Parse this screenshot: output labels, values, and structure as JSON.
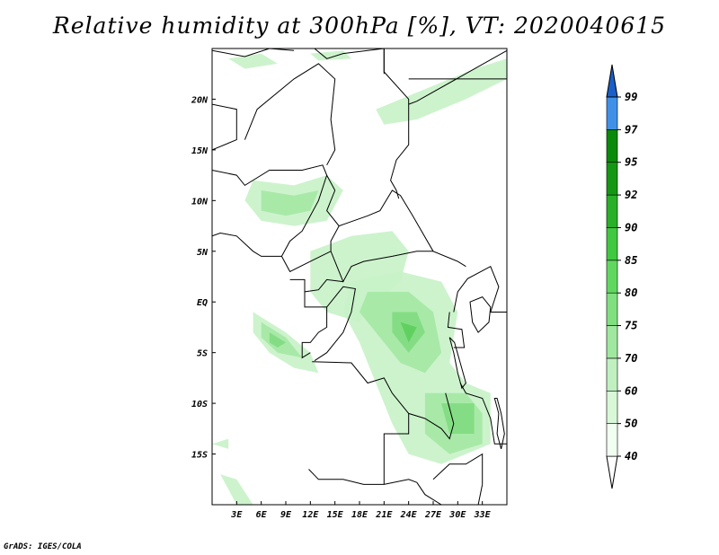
{
  "title": "Relative humidity at 300hPa [%], VT: 2020040615",
  "credit": "GrADS: IGES/COLA",
  "map": {
    "lon_range": [
      0,
      36
    ],
    "lat_range": [
      -20,
      25
    ],
    "lon_ticks": [
      {
        "value": 3,
        "label": "3E"
      },
      {
        "value": 6,
        "label": "6E"
      },
      {
        "value": 9,
        "label": "9E"
      },
      {
        "value": 12,
        "label": "12E"
      },
      {
        "value": 15,
        "label": "15E"
      },
      {
        "value": 18,
        "label": "18E"
      },
      {
        "value": 21,
        "label": "21E"
      },
      {
        "value": 24,
        "label": "24E"
      },
      {
        "value": 27,
        "label": "27E"
      },
      {
        "value": 30,
        "label": "30E"
      },
      {
        "value": 33,
        "label": "33E"
      }
    ],
    "lat_ticks": [
      {
        "value": 20,
        "label": "20N"
      },
      {
        "value": 15,
        "label": "15N"
      },
      {
        "value": 10,
        "label": "10N"
      },
      {
        "value": 5,
        "label": "5N"
      },
      {
        "value": 0,
        "label": "EQ"
      },
      {
        "value": -5,
        "label": "5S"
      },
      {
        "value": -10,
        "label": "10S"
      },
      {
        "value": -15,
        "label": "15S"
      }
    ]
  },
  "colorbar": {
    "levels": [
      {
        "value": "40",
        "color": "#f0fff0"
      },
      {
        "value": "50",
        "color": "#d8f8d8"
      },
      {
        "value": "60",
        "color": "#c0f0c0"
      },
      {
        "value": "70",
        "color": "#a0e8a0"
      },
      {
        "value": "75",
        "color": "#80e080"
      },
      {
        "value": "80",
        "color": "#60d860"
      },
      {
        "value": "85",
        "color": "#40c840"
      },
      {
        "value": "90",
        "color": "#28b028"
      },
      {
        "value": "92",
        "color": "#149814"
      },
      {
        "value": "95",
        "color": "#0a8a0a"
      },
      {
        "value": "97",
        "color": "#4090e8"
      },
      {
        "value": "99",
        "color": "#2070d8"
      }
    ],
    "top_color": "#1a5fc8",
    "bottom_color": "#ffffff"
  },
  "humidity_areas": [
    {
      "level": 1,
      "points": [
        [
          5,
          12
        ],
        [
          10,
          11.5
        ],
        [
          14,
          12.5
        ],
        [
          16,
          11
        ],
        [
          14,
          8
        ],
        [
          10,
          7.5
        ],
        [
          6,
          8
        ],
        [
          4,
          10
        ]
      ]
    },
    {
      "level": 1,
      "points": [
        [
          12,
          5
        ],
        [
          17,
          6.5
        ],
        [
          22,
          7
        ],
        [
          24,
          5
        ],
        [
          23,
          2
        ],
        [
          20,
          0
        ],
        [
          18,
          -2
        ],
        [
          14,
          -1
        ],
        [
          12,
          1
        ]
      ]
    },
    {
      "level": 1,
      "points": [
        [
          17,
          2
        ],
        [
          23,
          3
        ],
        [
          28,
          2
        ],
        [
          30,
          -1
        ],
        [
          29,
          -6
        ],
        [
          31,
          -8
        ],
        [
          34,
          -9
        ],
        [
          34,
          -14
        ],
        [
          31,
          -15
        ],
        [
          28,
          -16
        ],
        [
          24,
          -15
        ],
        [
          22,
          -12
        ],
        [
          20,
          -8
        ],
        [
          18,
          -4
        ],
        [
          16,
          -1
        ]
      ]
    },
    {
      "level": 1,
      "points": [
        [
          5,
          -1
        ],
        [
          9,
          -3
        ],
        [
          12,
          -5
        ],
        [
          13,
          -7
        ],
        [
          10,
          -6.5
        ],
        [
          7,
          -5
        ],
        [
          5,
          -3
        ]
      ]
    },
    {
      "level": 1,
      "points": [
        [
          20,
          19
        ],
        [
          26,
          21
        ],
        [
          32,
          23
        ],
        [
          36,
          24
        ],
        [
          36,
          22
        ],
        [
          31,
          20
        ],
        [
          25,
          18
        ],
        [
          21,
          17.5
        ]
      ]
    },
    {
      "level": 1,
      "points": [
        [
          2,
          24
        ],
        [
          6,
          24.5
        ],
        [
          8,
          23.5
        ],
        [
          4,
          23
        ]
      ]
    },
    {
      "level": 1,
      "points": [
        [
          12,
          24.5
        ],
        [
          16,
          24.8
        ],
        [
          17,
          24
        ],
        [
          13,
          23.8
        ]
      ]
    },
    {
      "level": 1,
      "points": [
        [
          1,
          -17
        ],
        [
          3,
          -20
        ],
        [
          5,
          -20
        ],
        [
          3,
          -17.5
        ]
      ]
    },
    {
      "level": 1,
      "points": [
        [
          0,
          -14
        ],
        [
          2,
          -13.5
        ],
        [
          2,
          -14.5
        ]
      ]
    },
    {
      "level": 2,
      "points": [
        [
          6,
          11
        ],
        [
          10,
          10.5
        ],
        [
          13,
          11
        ],
        [
          12,
          9
        ],
        [
          9,
          8.5
        ],
        [
          6,
          9
        ]
      ]
    },
    {
      "level": 2,
      "points": [
        [
          19,
          1
        ],
        [
          24,
          1
        ],
        [
          27,
          -1
        ],
        [
          28,
          -5
        ],
        [
          26,
          -7
        ],
        [
          23,
          -6
        ],
        [
          20,
          -3
        ],
        [
          18,
          -1
        ]
      ]
    },
    {
      "level": 2,
      "points": [
        [
          26,
          -9
        ],
        [
          31,
          -9
        ],
        [
          33,
          -11
        ],
        [
          33,
          -14
        ],
        [
          29,
          -15
        ],
        [
          26,
          -13
        ]
      ]
    },
    {
      "level": 2,
      "points": [
        [
          6,
          -2
        ],
        [
          9,
          -3.5
        ],
        [
          11,
          -5.5
        ],
        [
          8,
          -5
        ],
        [
          6,
          -3.5
        ]
      ]
    },
    {
      "level": 3,
      "points": [
        [
          22,
          -1
        ],
        [
          25,
          -1
        ],
        [
          26,
          -3
        ],
        [
          24,
          -5
        ],
        [
          22,
          -3
        ]
      ]
    },
    {
      "level": 3,
      "points": [
        [
          28,
          -10
        ],
        [
          32,
          -10
        ],
        [
          32,
          -13
        ],
        [
          29,
          -13
        ]
      ]
    },
    {
      "level": 3,
      "points": [
        [
          7,
          -3
        ],
        [
          9,
          -4
        ],
        [
          8,
          -4.5
        ],
        [
          7,
          -4
        ]
      ]
    },
    {
      "level": 4,
      "points": [
        [
          23,
          -2
        ],
        [
          25,
          -2.5
        ],
        [
          24,
          -4
        ]
      ]
    }
  ],
  "borders": [
    [
      [
        0,
        24.8
      ],
      [
        4,
        24.2
      ],
      [
        7,
        25
      ],
      [
        10,
        24.8
      ]
    ],
    [
      [
        12.5,
        25
      ],
      [
        14,
        24
      ],
      [
        16,
        24.5
      ],
      [
        21,
        25
      ],
      [
        21,
        22.5
      ]
    ],
    [
      [
        0,
        19.5
      ],
      [
        3,
        19
      ],
      [
        3,
        16
      ],
      [
        0,
        15
      ]
    ],
    [
      [
        4,
        16
      ],
      [
        5.5,
        19
      ],
      [
        10,
        22
      ],
      [
        13,
        23.5
      ],
      [
        15,
        22
      ],
      [
        14.5,
        18
      ],
      [
        15,
        15
      ],
      [
        14,
        13.5
      ]
    ],
    [
      [
        21,
        25
      ],
      [
        21,
        22.7
      ],
      [
        24,
        20
      ],
      [
        24,
        15.5
      ],
      [
        22.5,
        14
      ],
      [
        21.8,
        12
      ],
      [
        22.5,
        11
      ],
      [
        22.8,
        10.2
      ]
    ],
    [
      [
        24,
        22
      ],
      [
        36,
        22
      ]
    ],
    [
      [
        24,
        19.5
      ],
      [
        25,
        19.8
      ],
      [
        36,
        24.8
      ]
    ],
    [
      [
        0,
        13
      ],
      [
        3,
        12.5
      ],
      [
        4,
        11.5
      ],
      [
        7,
        13
      ],
      [
        11,
        13
      ],
      [
        13.5,
        13.5
      ],
      [
        14,
        12.5
      ],
      [
        15,
        11
      ]
    ],
    [
      [
        15,
        11
      ],
      [
        14,
        9
      ],
      [
        15.5,
        7.5
      ],
      [
        19,
        8.5
      ],
      [
        20.5,
        9
      ],
      [
        22,
        11
      ],
      [
        23,
        10.5
      ],
      [
        24.5,
        8.5
      ],
      [
        27,
        5
      ],
      [
        30,
        4
      ],
      [
        31,
        3.5
      ]
    ],
    [
      [
        15.5,
        7.5
      ],
      [
        14.5,
        6
      ],
      [
        14.5,
        5
      ],
      [
        16,
        2
      ],
      [
        17,
        3.5
      ],
      [
        18.5,
        4
      ],
      [
        22,
        4.5
      ],
      [
        25,
        5
      ],
      [
        27,
        5
      ]
    ],
    [
      [
        14.5,
        5
      ],
      [
        12,
        4
      ],
      [
        9.5,
        3
      ],
      [
        8.5,
        4.5
      ],
      [
        9.5,
        6
      ],
      [
        11,
        7
      ],
      [
        13,
        10
      ],
      [
        14,
        12.5
      ]
    ],
    [
      [
        0,
        6.5
      ],
      [
        1,
        6.8
      ],
      [
        3,
        6.5
      ],
      [
        5,
        5
      ],
      [
        6,
        4.5
      ],
      [
        8.5,
        4.5
      ]
    ],
    [
      [
        9.5,
        2.2
      ],
      [
        11.3,
        2.2
      ],
      [
        11.3,
        1
      ],
      [
        13,
        1.2
      ],
      [
        14,
        2.2
      ],
      [
        16,
        2
      ]
    ],
    [
      [
        11.3,
        1
      ],
      [
        11.3,
        -0.5
      ],
      [
        14,
        -0.5
      ],
      [
        14,
        -2.5
      ],
      [
        13,
        -3
      ],
      [
        12,
        -4
      ],
      [
        11,
        -4
      ],
      [
        11,
        -5.5
      ],
      [
        12,
        -5
      ]
    ],
    [
      [
        14,
        -0.5
      ],
      [
        16,
        1.5
      ],
      [
        17.5,
        1.3
      ],
      [
        17,
        -1
      ],
      [
        16,
        -3
      ],
      [
        15,
        -4
      ],
      [
        14,
        -5
      ],
      [
        12.5,
        -5.8
      ]
    ],
    [
      [
        12.2,
        -5.9
      ],
      [
        17,
        -6
      ],
      [
        19,
        -8
      ],
      [
        21,
        -7.5
      ],
      [
        22,
        -9
      ],
      [
        24,
        -11
      ],
      [
        26,
        -11.5
      ],
      [
        28,
        -12.5
      ],
      [
        29,
        -13.5
      ],
      [
        29.5,
        -12
      ],
      [
        28.5,
        -9
      ]
    ],
    [
      [
        11.8,
        -16.5
      ],
      [
        13,
        -17.5
      ],
      [
        16,
        -17.5
      ],
      [
        18.5,
        -18
      ],
      [
        21,
        -18
      ],
      [
        24,
        -17.5
      ],
      [
        25,
        -17.8
      ]
    ],
    [
      [
        21,
        -18
      ],
      [
        21,
        -13
      ],
      [
        24,
        -13
      ],
      [
        24,
        -11
      ]
    ],
    [
      [
        27,
        -17.5
      ],
      [
        29,
        -16
      ],
      [
        31,
        -16
      ],
      [
        33,
        -15
      ],
      [
        33,
        -18
      ]
    ],
    [
      [
        29.5,
        -1
      ],
      [
        30,
        1
      ],
      [
        31.2,
        2.3
      ],
      [
        34,
        3.5
      ],
      [
        35,
        1.5
      ],
      [
        34,
        -1
      ],
      [
        36,
        -1
      ]
    ],
    [
      [
        29,
        -1
      ],
      [
        28.8,
        -2.5
      ],
      [
        30.5,
        -2.7
      ],
      [
        30.8,
        -4.5
      ],
      [
        29.5,
        -4.5
      ]
    ],
    [
      [
        30.3,
        -8
      ],
      [
        31,
        -9
      ],
      [
        33,
        -9.5
      ],
      [
        34,
        -11.5
      ],
      [
        34.5,
        -14
      ],
      [
        36,
        -14
      ]
    ],
    [
      [
        25,
        -17.8
      ],
      [
        26,
        -19
      ],
      [
        28,
        -20
      ]
    ],
    [
      [
        33,
        -18
      ],
      [
        32.5,
        -20
      ]
    ]
  ],
  "lakes": [
    [
      [
        31.5,
        0
      ],
      [
        33,
        0.5
      ],
      [
        34,
        -0.5
      ],
      [
        33.8,
        -2
      ],
      [
        32.5,
        -3
      ],
      [
        31.8,
        -2
      ]
    ],
    [
      [
        29,
        -3.5
      ],
      [
        29.5,
        -5
      ],
      [
        30,
        -7
      ],
      [
        30.5,
        -8.5
      ],
      [
        31,
        -8
      ],
      [
        30.3,
        -6
      ],
      [
        29.6,
        -4
      ]
    ],
    [
      [
        34.5,
        -9.5
      ],
      [
        35,
        -11
      ],
      [
        34.8,
        -13
      ],
      [
        35.3,
        -14.5
      ],
      [
        35.7,
        -13
      ],
      [
        35.3,
        -11
      ],
      [
        34.8,
        -9.5
      ]
    ]
  ]
}
